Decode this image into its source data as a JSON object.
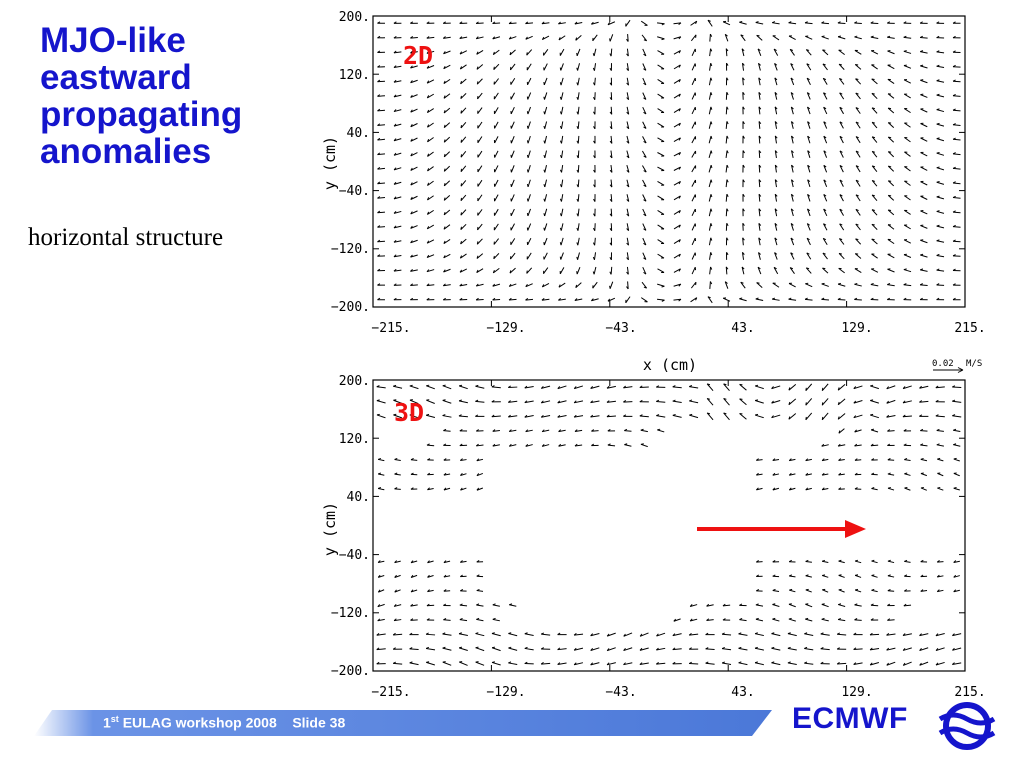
{
  "slide": {
    "title": "MJO-like eastward propagating anomalies",
    "subtitle": "horizontal structure"
  },
  "plots": [
    {
      "panel_label": "2D",
      "ylabel": "y (cm)",
      "xlabel": "x (cm)",
      "x_ticks": [
        "−215.",
        "−129.",
        "−43.",
        "43.",
        "129.",
        "215."
      ],
      "y_ticks": [
        "200.",
        "120.",
        "40.",
        "−40.",
        "−120.",
        "−200."
      ],
      "reference_vector": {
        "value": "0.02",
        "unit": "M/S"
      }
    },
    {
      "panel_label": "3D",
      "ylabel": "y (cm)",
      "x_ticks": [
        "−215.",
        "−129.",
        "−43.",
        "43.",
        "129.",
        "215."
      ],
      "y_ticks": [
        "200.",
        "120.",
        "40.",
        "−40.",
        "−120.",
        "−200."
      ]
    }
  ],
  "chart_data": [
    {
      "type": "vector-field",
      "panel": "2D",
      "xlabel": "x (cm)",
      "ylabel": "y (cm)",
      "xlim": [
        -215,
        215
      ],
      "ylim": [
        -200,
        200
      ],
      "x_ticks": [
        -215,
        -129,
        -43,
        43,
        129,
        215
      ],
      "y_ticks": [
        200,
        120,
        40,
        -40,
        -120,
        -200
      ],
      "reference_vector": {
        "value": 0.02,
        "unit": "M/S"
      },
      "grid_nx": 36,
      "grid_ny": 20
    },
    {
      "type": "vector-field",
      "panel": "3D",
      "ylabel": "y (cm)",
      "xlim": [
        -215,
        215
      ],
      "ylim": [
        -200,
        200
      ],
      "x_ticks": [
        -215,
        -129,
        -43,
        43,
        129,
        215
      ],
      "y_ticks": [
        200,
        120,
        40,
        -40,
        -120,
        -200
      ],
      "grid_nx": 36,
      "grid_ny": 20,
      "annotation_arrow": {
        "direction": "east",
        "color": "#ee1111"
      }
    }
  ],
  "footer": {
    "ordinal": "1",
    "ordinal_sup": "st",
    "event": " EULAG workshop 2008",
    "slide": "Slide 38",
    "logo": "ECMWF"
  },
  "colors": {
    "title": "#1515cc",
    "panel_label": "#ee1111",
    "footer_band": "#5b86e0",
    "logo": "#1515cc",
    "arrow": "#ee1111"
  }
}
